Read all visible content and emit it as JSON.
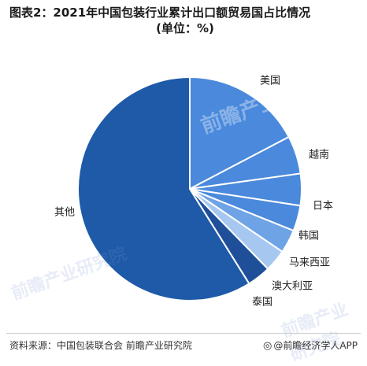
{
  "title": {
    "line1": "图表2：2021年中国包装行业累计出口额贸易国占比情况",
    "line2": "(单位：%)"
  },
  "footer": {
    "source": "资料来源：中国包装联合会 前瞻产业研究院",
    "brand": "@前瞻经济学人APP",
    "brand_icon": "at-icon"
  },
  "watermark": "前瞻产业研究院",
  "chart_data": {
    "type": "pie",
    "title": "图表2：2021年中国包装行业累计出口额贸易国占比情况",
    "subtitle": "(单位：%)",
    "start_angle_deg": 0,
    "direction": "clockwise",
    "slices": [
      {
        "label": "美国",
        "value": 17.3,
        "color": "#4a89dc"
      },
      {
        "label": "越南",
        "value": 5.5,
        "color": "#4a89dc"
      },
      {
        "label": "日本",
        "value": 4.6,
        "color": "#4a89dc"
      },
      {
        "label": "韩国",
        "value": 3.7,
        "color": "#4a89dc"
      },
      {
        "label": "马来西亚",
        "value": 3.4,
        "color": "#6ea3e6"
      },
      {
        "label": "澳大利亚",
        "value": 3.2,
        "color": "#a6c8f0"
      },
      {
        "label": "泰国",
        "value": 3.4,
        "color": "#1f4f99"
      },
      {
        "label": "其他",
        "value": 58.9,
        "color": "#1e5aa8"
      }
    ],
    "legend": "none"
  }
}
